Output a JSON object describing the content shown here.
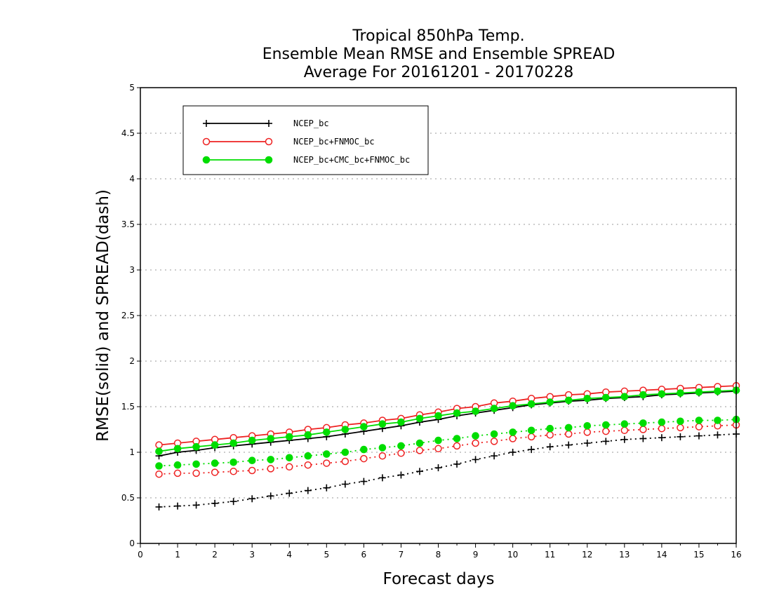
{
  "chart_data": {
    "type": "line",
    "title": [
      "Tropical 850hPa Temp.",
      "Ensemble Mean RMSE and Ensemble SPREAD",
      "Average For 20161201 - 20170228"
    ],
    "xlabel": "Forecast days",
    "ylabel": "RMSE(solid) and SPREAD(dash)",
    "xlim": [
      0,
      16
    ],
    "ylim": [
      0,
      5
    ],
    "xticks": [
      0,
      1,
      2,
      3,
      4,
      5,
      6,
      7,
      8,
      9,
      10,
      11,
      12,
      13,
      14,
      15,
      16
    ],
    "xtick_labels": [
      "0",
      "1",
      "2",
      "3",
      "4",
      "5",
      "6",
      "7",
      "8",
      "9",
      "10",
      "11",
      "12",
      "13",
      "14",
      "15",
      "16"
    ],
    "yticks": [
      0,
      0.5,
      1,
      1.5,
      2,
      2.5,
      3,
      3.5,
      4,
      4.5,
      5
    ],
    "ytick_labels": [
      "0",
      "0.5",
      "1",
      "1.5",
      "2",
      "2.5",
      "3",
      "3.5",
      "4",
      "4.5",
      "5"
    ],
    "grid": true,
    "legend_position": "top-left",
    "x": [
      0.5,
      1,
      1.5,
      2,
      2.5,
      3,
      3.5,
      4,
      4.5,
      5,
      5.5,
      6,
      6.5,
      7,
      7.5,
      8,
      8.5,
      9,
      9.5,
      10,
      10.5,
      11,
      11.5,
      12,
      12.5,
      13,
      13.5,
      14,
      14.5,
      15,
      15.5,
      16
    ],
    "series": [
      {
        "name": "NCEP_bc",
        "color": "#000000",
        "marker": "plus",
        "rmse": [
          0.96,
          1.0,
          1.02,
          1.05,
          1.07,
          1.09,
          1.11,
          1.13,
          1.15,
          1.17,
          1.2,
          1.23,
          1.26,
          1.29,
          1.33,
          1.36,
          1.4,
          1.43,
          1.46,
          1.49,
          1.52,
          1.54,
          1.56,
          1.57,
          1.59,
          1.6,
          1.61,
          1.63,
          1.64,
          1.65,
          1.66,
          1.67
        ],
        "spread": [
          0.4,
          0.41,
          0.42,
          0.44,
          0.46,
          0.49,
          0.52,
          0.55,
          0.58,
          0.61,
          0.65,
          0.68,
          0.72,
          0.75,
          0.79,
          0.83,
          0.87,
          0.92,
          0.96,
          1.0,
          1.03,
          1.06,
          1.08,
          1.1,
          1.12,
          1.14,
          1.15,
          1.16,
          1.17,
          1.18,
          1.19,
          1.2
        ]
      },
      {
        "name": "NCEP_bc+FNMOC_bc",
        "color": "#ee2222",
        "marker": "open-circle",
        "rmse": [
          1.08,
          1.1,
          1.12,
          1.14,
          1.16,
          1.18,
          1.2,
          1.22,
          1.25,
          1.27,
          1.3,
          1.32,
          1.35,
          1.37,
          1.41,
          1.44,
          1.48,
          1.5,
          1.54,
          1.56,
          1.59,
          1.61,
          1.63,
          1.64,
          1.66,
          1.67,
          1.68,
          1.69,
          1.7,
          1.71,
          1.72,
          1.73
        ],
        "spread": [
          0.76,
          0.77,
          0.77,
          0.78,
          0.79,
          0.8,
          0.82,
          0.84,
          0.86,
          0.88,
          0.9,
          0.93,
          0.96,
          0.99,
          1.02,
          1.04,
          1.07,
          1.1,
          1.12,
          1.15,
          1.17,
          1.19,
          1.2,
          1.22,
          1.23,
          1.24,
          1.25,
          1.26,
          1.27,
          1.28,
          1.29,
          1.3
        ]
      },
      {
        "name": "NCEP_bc+CMC_bc+FNMOC_bc",
        "color": "#00dd00",
        "marker": "filled-circle",
        "rmse": [
          1.01,
          1.04,
          1.06,
          1.08,
          1.1,
          1.13,
          1.15,
          1.17,
          1.19,
          1.22,
          1.25,
          1.28,
          1.31,
          1.33,
          1.37,
          1.4,
          1.43,
          1.45,
          1.48,
          1.51,
          1.53,
          1.55,
          1.57,
          1.59,
          1.6,
          1.61,
          1.63,
          1.64,
          1.65,
          1.66,
          1.67,
          1.68
        ],
        "spread": [
          0.85,
          0.86,
          0.87,
          0.88,
          0.89,
          0.91,
          0.92,
          0.94,
          0.96,
          0.98,
          1.0,
          1.03,
          1.05,
          1.07,
          1.1,
          1.13,
          1.15,
          1.18,
          1.2,
          1.22,
          1.24,
          1.26,
          1.27,
          1.29,
          1.3,
          1.31,
          1.32,
          1.33,
          1.34,
          1.35,
          1.35,
          1.36
        ]
      }
    ]
  }
}
